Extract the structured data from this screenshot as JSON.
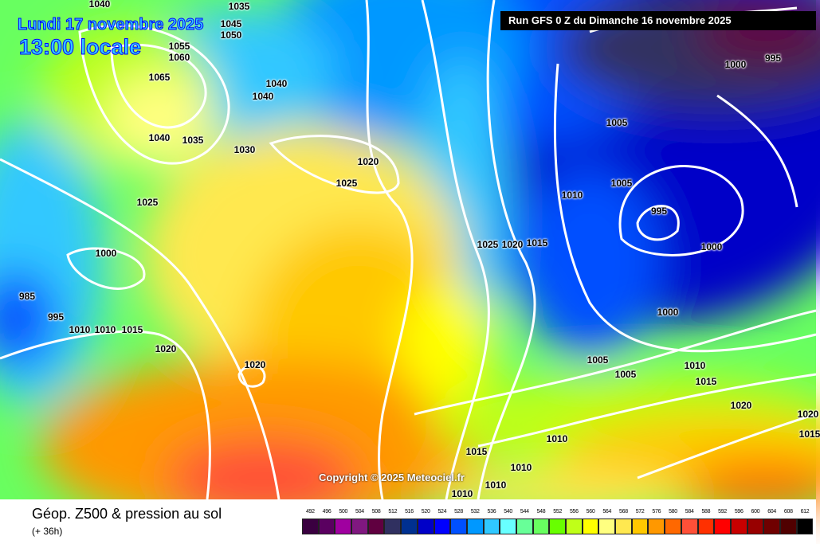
{
  "header": {
    "date": "Lundi 17 novembre 2025",
    "time": "13:00 locale",
    "run": "Run GFS 0 Z du Dimanche 16 novembre 2025"
  },
  "copyright": "Copyright © 2025 Meteociel.fr",
  "footer": {
    "title": "Géop. Z500 & pression au sol",
    "subtitle": "(+ 36h)"
  },
  "legend": {
    "values": [
      "492",
      "496",
      "500",
      "504",
      "508",
      "512",
      "516",
      "520",
      "524",
      "528",
      "532",
      "536",
      "540",
      "544",
      "548",
      "552",
      "556",
      "560",
      "564",
      "568",
      "572",
      "576",
      "580",
      "584",
      "588",
      "592",
      "596",
      "600",
      "604",
      "608",
      "612"
    ],
    "colors": [
      "#3a0040",
      "#5a0060",
      "#a000a0",
      "#801880",
      "#600040",
      "#303060",
      "#003090",
      "#0000c8",
      "#0000ff",
      "#0050ff",
      "#0098ff",
      "#30c8ff",
      "#68ffff",
      "#68ff98",
      "#68ff60",
      "#68ff00",
      "#c0ff18",
      "#ffff00",
      "#ffff80",
      "#ffe850",
      "#ffc800",
      "#ff9800",
      "#ff6800",
      "#ff5038",
      "#ff3000",
      "#ff0000",
      "#c80000",
      "#980000",
      "#700000",
      "#500000",
      "#000000"
    ]
  },
  "isobar_labels": [
    "1040",
    "1035",
    "1045",
    "1050",
    "1055",
    "1060",
    "1065",
    "1040",
    "1040",
    "1040",
    "1035",
    "1030",
    "1020",
    "1025",
    "1025",
    "1000",
    "985",
    "995",
    "1010",
    "1010",
    "1015",
    "1020",
    "1020",
    "1025",
    "1020",
    "1015",
    "1010",
    "1005",
    "1005",
    "995",
    "1000",
    "1000",
    "995",
    "1000",
    "1005",
    "1005",
    "1010",
    "1015",
    "1020",
    "1010",
    "1015",
    "1010",
    "1010",
    "1020",
    "1015",
    "1010"
  ]
}
